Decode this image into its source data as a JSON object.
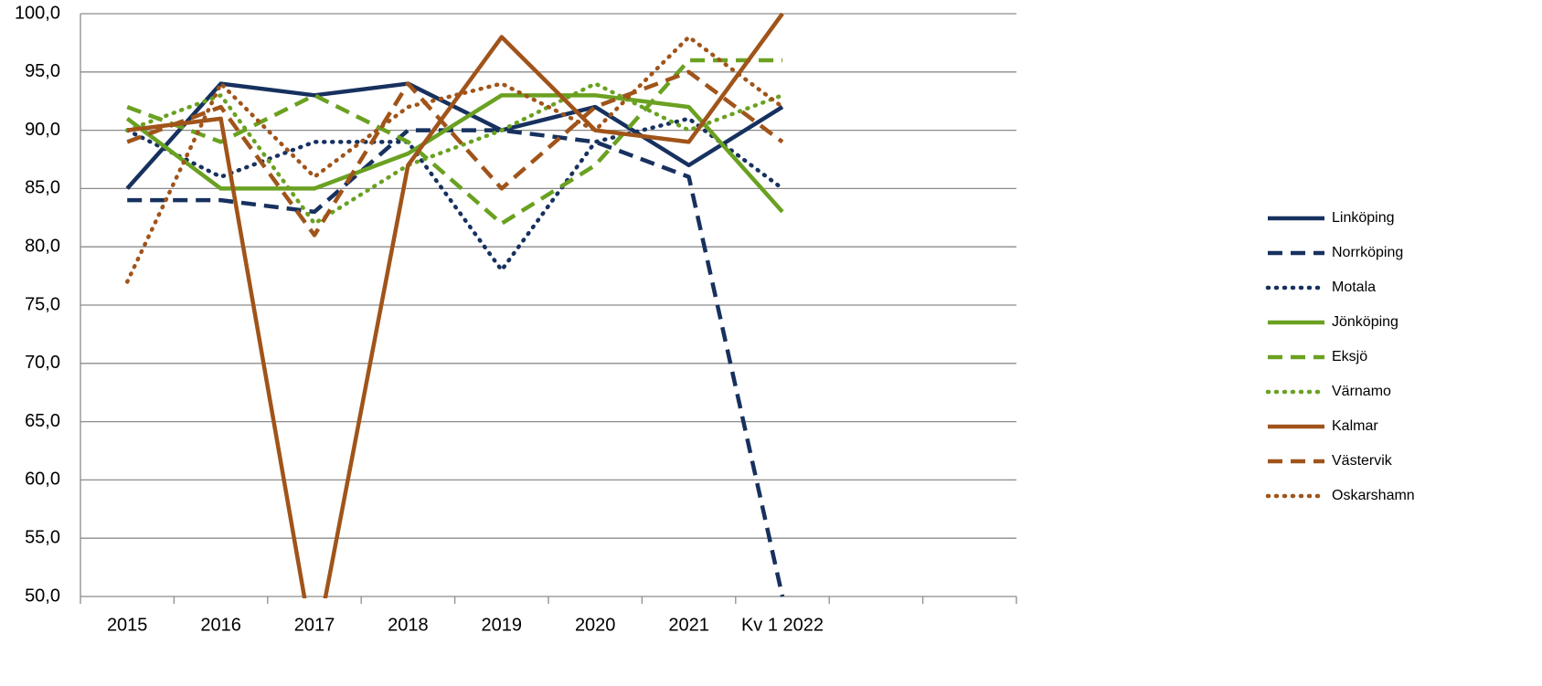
{
  "chart_data": {
    "type": "line",
    "categories": [
      "2015",
      "2016",
      "2017",
      "2018",
      "2019",
      "2020",
      "2021",
      "Kv 1 2022",
      null,
      null
    ],
    "ylim": [
      50,
      100
    ],
    "yticks": [
      {
        "value": 50,
        "label": "50,0"
      },
      {
        "value": 55,
        "label": "55,0"
      },
      {
        "value": 60,
        "label": "60,0"
      },
      {
        "value": 65,
        "label": "65,0"
      },
      {
        "value": 70,
        "label": "70,0"
      },
      {
        "value": 75,
        "label": "75,0"
      },
      {
        "value": 80,
        "label": "80,0"
      },
      {
        "value": 85,
        "label": "85,0"
      },
      {
        "value": 90,
        "label": "90,0"
      },
      {
        "value": 95,
        "label": "95,0"
      },
      {
        "value": 100,
        "label": "100,0"
      }
    ],
    "grid": true,
    "legend": "right",
    "series": [
      {
        "name": "Linköping",
        "color": "#17315f",
        "dash": "solid",
        "values": [
          85,
          94,
          93,
          94,
          90,
          92,
          87,
          92,
          null,
          null
        ]
      },
      {
        "name": "Norrköping",
        "color": "#17315f",
        "dash": "dashed",
        "values": [
          84,
          84,
          83,
          90,
          90,
          89,
          86,
          50,
          null,
          null
        ]
      },
      {
        "name": "Motala",
        "color": "#17315f",
        "dash": "dotted",
        "values": [
          90,
          86,
          89,
          89,
          78,
          89,
          91,
          85,
          null,
          null
        ]
      },
      {
        "name": "Jönköping",
        "color": "#6aa121",
        "dash": "solid",
        "values": [
          91,
          85,
          85,
          88,
          93,
          93,
          92,
          83,
          null,
          null
        ]
      },
      {
        "name": "Eksjö",
        "color": "#6aa121",
        "dash": "dashed",
        "values": [
          92,
          89,
          93,
          89,
          82,
          87,
          96,
          96,
          null,
          null
        ]
      },
      {
        "name": "Värnamo",
        "color": "#6aa121",
        "dash": "dotted",
        "values": [
          90,
          93,
          82,
          87,
          90,
          94,
          90,
          93,
          null,
          null
        ]
      },
      {
        "name": "Kalmar",
        "color": "#a0541a",
        "dash": "solid",
        "values": [
          90,
          91,
          45,
          87,
          98,
          90,
          89,
          100,
          null,
          null
        ]
      },
      {
        "name": "Västervik",
        "color": "#a0541a",
        "dash": "dashed",
        "values": [
          89,
          92,
          81,
          94,
          85,
          92,
          95,
          89,
          null,
          null
        ]
      },
      {
        "name": "Oskarshamn",
        "color": "#a0541a",
        "dash": "dotted",
        "values": [
          77,
          94,
          86,
          92,
          94,
          90,
          98,
          92,
          null,
          null
        ]
      }
    ]
  }
}
